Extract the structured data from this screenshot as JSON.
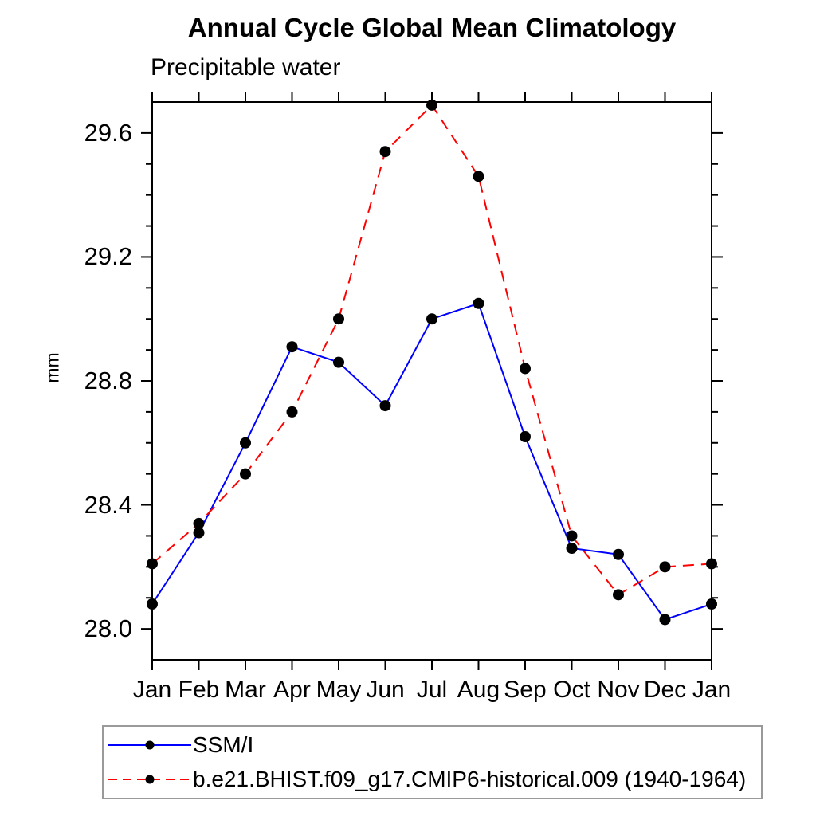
{
  "chart_data": {
    "type": "line",
    "title": "Annual Cycle Global Mean Climatology",
    "subtitle": "Precipitable water",
    "ylabel": "mm",
    "xlabel": "",
    "categories": [
      "Jan",
      "Feb",
      "Mar",
      "Apr",
      "May",
      "Jun",
      "Jul",
      "Aug",
      "Sep",
      "Oct",
      "Nov",
      "Dec",
      "Jan"
    ],
    "series": [
      {
        "name": "SSM/I",
        "color": "#0000ff",
        "line_style": "solid",
        "marker": "filled-circle",
        "marker_color": "#000000",
        "values": [
          28.08,
          28.31,
          28.6,
          28.91,
          28.86,
          28.72,
          29.0,
          29.05,
          28.62,
          28.26,
          28.24,
          28.03,
          28.08
        ]
      },
      {
        "name": "b.e21.BHIST.f09_g17.CMIP6-historical.009 (1940-1964)",
        "color": "#ff0000",
        "line_style": "dashed",
        "marker": "filled-circle",
        "marker_color": "#000000",
        "values": [
          28.21,
          28.34,
          28.5,
          28.7,
          29.0,
          29.54,
          29.69,
          29.46,
          28.84,
          28.3,
          28.11,
          28.2,
          28.21
        ]
      }
    ],
    "ylim": [
      27.9,
      29.7
    ],
    "yticks": [
      28.0,
      28.4,
      28.8,
      29.2,
      29.6
    ],
    "ytick_labels": [
      "28.0",
      "28.4",
      "28.8",
      "29.2",
      "29.6"
    ],
    "y_minor_tick_step": 0.1,
    "grid": false,
    "legend_position": "bottom-left-box",
    "frame_color": "#000000"
  }
}
